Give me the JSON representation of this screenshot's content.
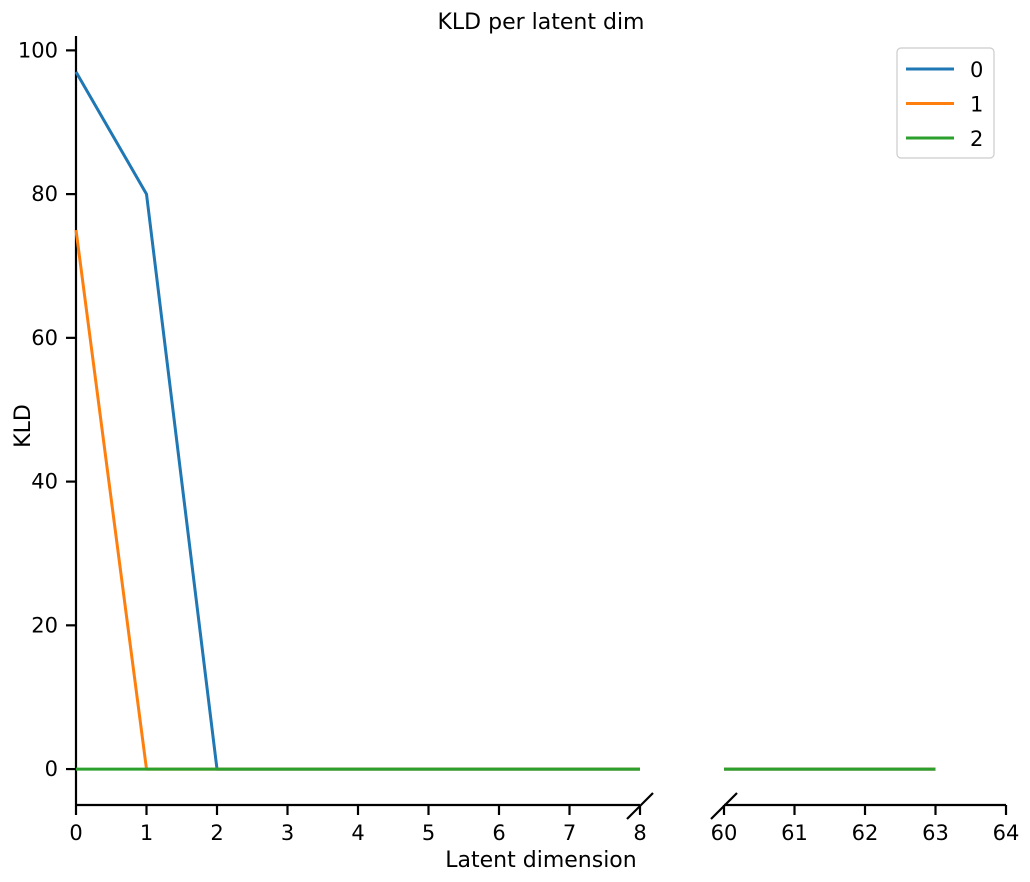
{
  "chart_data": {
    "type": "line",
    "title": "KLD per latent dim",
    "xlabel": "Latent dimension",
    "ylabel": "KLD",
    "ylim": [
      -5,
      102
    ],
    "yticks": [
      0,
      20,
      40,
      60,
      80,
      100
    ],
    "broken_x_axis": true,
    "segments": [
      {
        "xlim": [
          0,
          8
        ],
        "xticks": [
          0,
          1,
          2,
          3,
          4,
          5,
          6,
          7,
          8
        ]
      },
      {
        "xlim": [
          60,
          64
        ],
        "xticks": [
          60,
          61,
          62,
          63,
          64
        ]
      }
    ],
    "grid": false,
    "legend_position": "top-right",
    "series": [
      {
        "name": "0",
        "color": "#1f77b4",
        "x": [
          0,
          1,
          2,
          3,
          4,
          5,
          6,
          7,
          8,
          60,
          61,
          62,
          63
        ],
        "y": [
          97,
          80,
          0,
          0,
          0,
          0,
          0,
          0,
          0,
          0,
          0,
          0,
          0
        ]
      },
      {
        "name": "1",
        "color": "#ff7f0e",
        "x": [
          0,
          1,
          2,
          3,
          4,
          5,
          6,
          7,
          8,
          60,
          61,
          62,
          63
        ],
        "y": [
          75,
          0,
          0,
          0,
          0,
          0,
          0,
          0,
          0,
          0,
          0,
          0,
          0
        ]
      },
      {
        "name": "2",
        "color": "#2ca02c",
        "x": [
          0,
          1,
          2,
          3,
          4,
          5,
          6,
          7,
          8,
          60,
          61,
          62,
          63
        ],
        "y": [
          0,
          0,
          0,
          0,
          0,
          0,
          0,
          0,
          0,
          0,
          0,
          0,
          0
        ]
      }
    ]
  }
}
